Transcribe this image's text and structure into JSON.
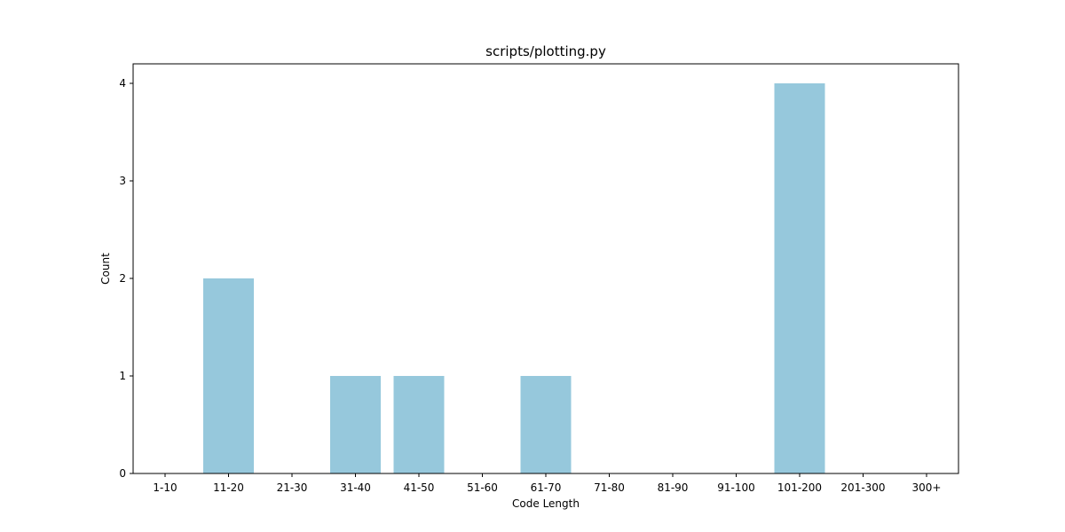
{
  "chart_data": {
    "type": "bar",
    "title": "scripts/plotting.py",
    "xlabel": "Code Length",
    "ylabel": "Count",
    "categories": [
      "1-10",
      "11-20",
      "21-30",
      "31-40",
      "41-50",
      "51-60",
      "61-70",
      "71-80",
      "81-90",
      "91-100",
      "101-200",
      "201-300",
      "300+"
    ],
    "values": [
      0,
      2,
      0,
      1,
      1,
      0,
      1,
      0,
      0,
      0,
      4,
      0,
      0
    ],
    "ylim": [
      0,
      4.2
    ],
    "yticks": [
      0,
      1,
      2,
      3,
      4
    ],
    "grid": false,
    "bar_color": "#96c8dc"
  }
}
